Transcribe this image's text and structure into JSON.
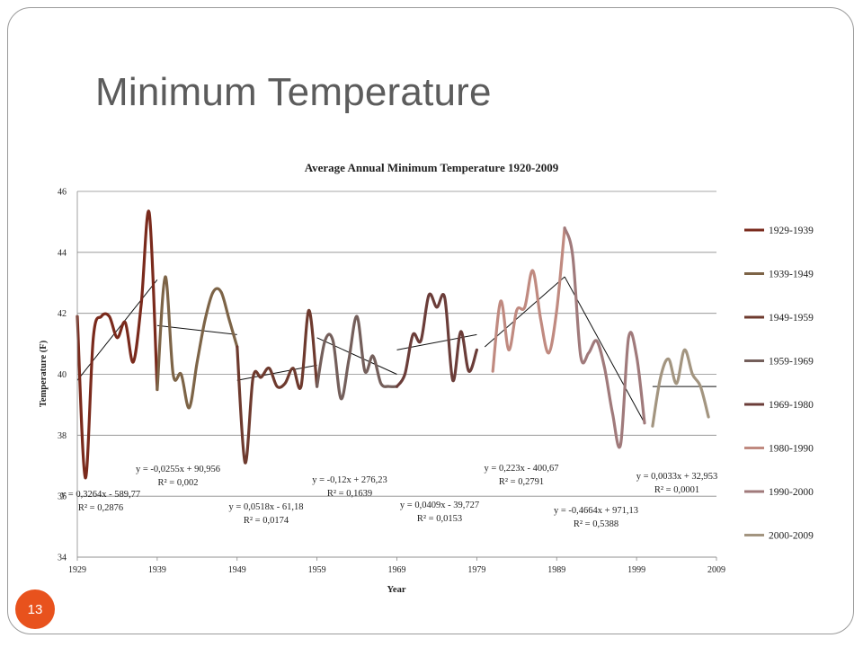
{
  "slide": {
    "title": "Minimum Temperature",
    "number": "13"
  },
  "chart_data": {
    "type": "line",
    "title": "Average Annual Minimum Temperature 1920-2009",
    "xlabel": "Year",
    "ylabel": "Temperature (F)",
    "xlim": [
      1929,
      2009
    ],
    "ylim": [
      34,
      46
    ],
    "xticks": [
      1929,
      1939,
      1949,
      1959,
      1969,
      1979,
      1989,
      1999,
      2009
    ],
    "yticks": [
      34,
      36,
      38,
      40,
      42,
      44,
      46
    ],
    "grid": "horizontal",
    "legend_position": "right",
    "series": [
      {
        "name": "1929-1939",
        "color": "#7a2a1c",
        "x": [
          1929,
          1930,
          1931,
          1932,
          1933,
          1934,
          1935,
          1936,
          1937,
          1938,
          1939
        ],
        "y": [
          41.9,
          36.6,
          41.2,
          41.9,
          41.9,
          41.2,
          41.7,
          40.4,
          42.3,
          45.3,
          39.5
        ]
      },
      {
        "name": "1939-1949",
        "color": "#7d6447",
        "x": [
          1939,
          1940,
          1941,
          1942,
          1943,
          1944,
          1945,
          1946,
          1947,
          1948,
          1949
        ],
        "y": [
          39.5,
          43.2,
          40.0,
          40.0,
          38.9,
          40.4,
          41.8,
          42.7,
          42.7,
          41.8,
          40.9
        ]
      },
      {
        "name": "1949-1959",
        "color": "#6e3a2e",
        "x": [
          1949,
          1950,
          1951,
          1952,
          1953,
          1954,
          1955,
          1956,
          1957,
          1958,
          1959
        ],
        "y": [
          40.9,
          37.1,
          39.9,
          39.9,
          40.2,
          39.6,
          39.7,
          40.2,
          39.6,
          42.1,
          39.6
        ]
      },
      {
        "name": "1959-1969",
        "color": "#745f5b",
        "x": [
          1959,
          1960,
          1961,
          1962,
          1963,
          1964,
          1965,
          1966,
          1967,
          1968,
          1969
        ],
        "y": [
          39.6,
          41.1,
          41.1,
          39.2,
          40.5,
          41.9,
          40.1,
          40.6,
          39.7,
          39.6,
          39.6
        ]
      },
      {
        "name": "1969-1980",
        "color": "#6b3d39",
        "x": [
          1969,
          1970,
          1971,
          1972,
          1973,
          1974,
          1975,
          1976,
          1977,
          1978,
          1979,
          1980
        ],
        "y": [
          39.6,
          40.0,
          41.3,
          41.1,
          42.6,
          42.2,
          42.5,
          39.8,
          41.4,
          40.1,
          40.8,
          null
        ]
      },
      {
        "name": "1980-1990",
        "color": "#c08a80",
        "x": [
          1981,
          1982,
          1983,
          1984,
          1985,
          1986,
          1987,
          1988,
          1989,
          1990
        ],
        "y": [
          40.1,
          42.4,
          40.8,
          42.1,
          42.2,
          43.4,
          41.8,
          40.7,
          42.1,
          44.8
        ]
      },
      {
        "name": "1990-2000",
        "color": "#a07a7b",
        "x": [
          1990,
          1991,
          1992,
          1993,
          1994,
          1995,
          1996,
          1997,
          1998,
          1999,
          2000,
          2001
        ],
        "y": [
          44.8,
          43.9,
          40.6,
          40.7,
          41.1,
          40.2,
          38.7,
          37.7,
          41.2,
          40.6,
          38.4,
          null
        ]
      },
      {
        "name": "2000-2009",
        "color": "#a39580",
        "x": [
          2001,
          2002,
          2003,
          2004,
          2005,
          2006,
          2007,
          2008
        ],
        "y": [
          38.3,
          39.9,
          40.5,
          39.7,
          40.8,
          40.0,
          39.6,
          38.6
        ]
      }
    ],
    "trendlines": [
      {
        "x": [
          1929,
          1939
        ],
        "y": [
          39.8,
          43.1
        ]
      },
      {
        "x": [
          1939,
          1949
        ],
        "y": [
          41.6,
          41.3
        ]
      },
      {
        "x": [
          1949,
          1959
        ],
        "y": [
          39.8,
          40.3
        ]
      },
      {
        "x": [
          1959,
          1969
        ],
        "y": [
          41.2,
          40.0
        ]
      },
      {
        "x": [
          1969,
          1979
        ],
        "y": [
          40.8,
          41.3
        ]
      },
      {
        "x": [
          1980,
          1990
        ],
        "y": [
          40.9,
          43.2
        ]
      },
      {
        "x": [
          1990,
          2000
        ],
        "y": [
          43.2,
          38.4
        ]
      },
      {
        "x": [
          2001,
          2009
        ],
        "y": [
          39.6,
          39.6
        ]
      }
    ],
    "annotations": [
      {
        "lines": [
          "y = 0,3264x - 589,77",
          "R² = 0,2876"
        ]
      },
      {
        "lines": [
          "y = -0,0255x + 90,956",
          "R² = 0,002"
        ]
      },
      {
        "lines": [
          "y = 0,0518x - 61,18",
          "R² = 0,0174"
        ]
      },
      {
        "lines": [
          "y = -0,12x + 276,23",
          "R² = 0,1639"
        ]
      },
      {
        "lines": [
          "y = 0,0409x - 39,727",
          "R² = 0,0153"
        ]
      },
      {
        "lines": [
          "y = 0,223x - 400,67",
          "R² = 0,2791"
        ]
      },
      {
        "lines": [
          "y = -0,4664x + 971,13",
          "R² = 0,5388"
        ]
      },
      {
        "lines": [
          "y = 0,0033x + 32,953",
          "R² = 0,0001"
        ]
      }
    ]
  }
}
